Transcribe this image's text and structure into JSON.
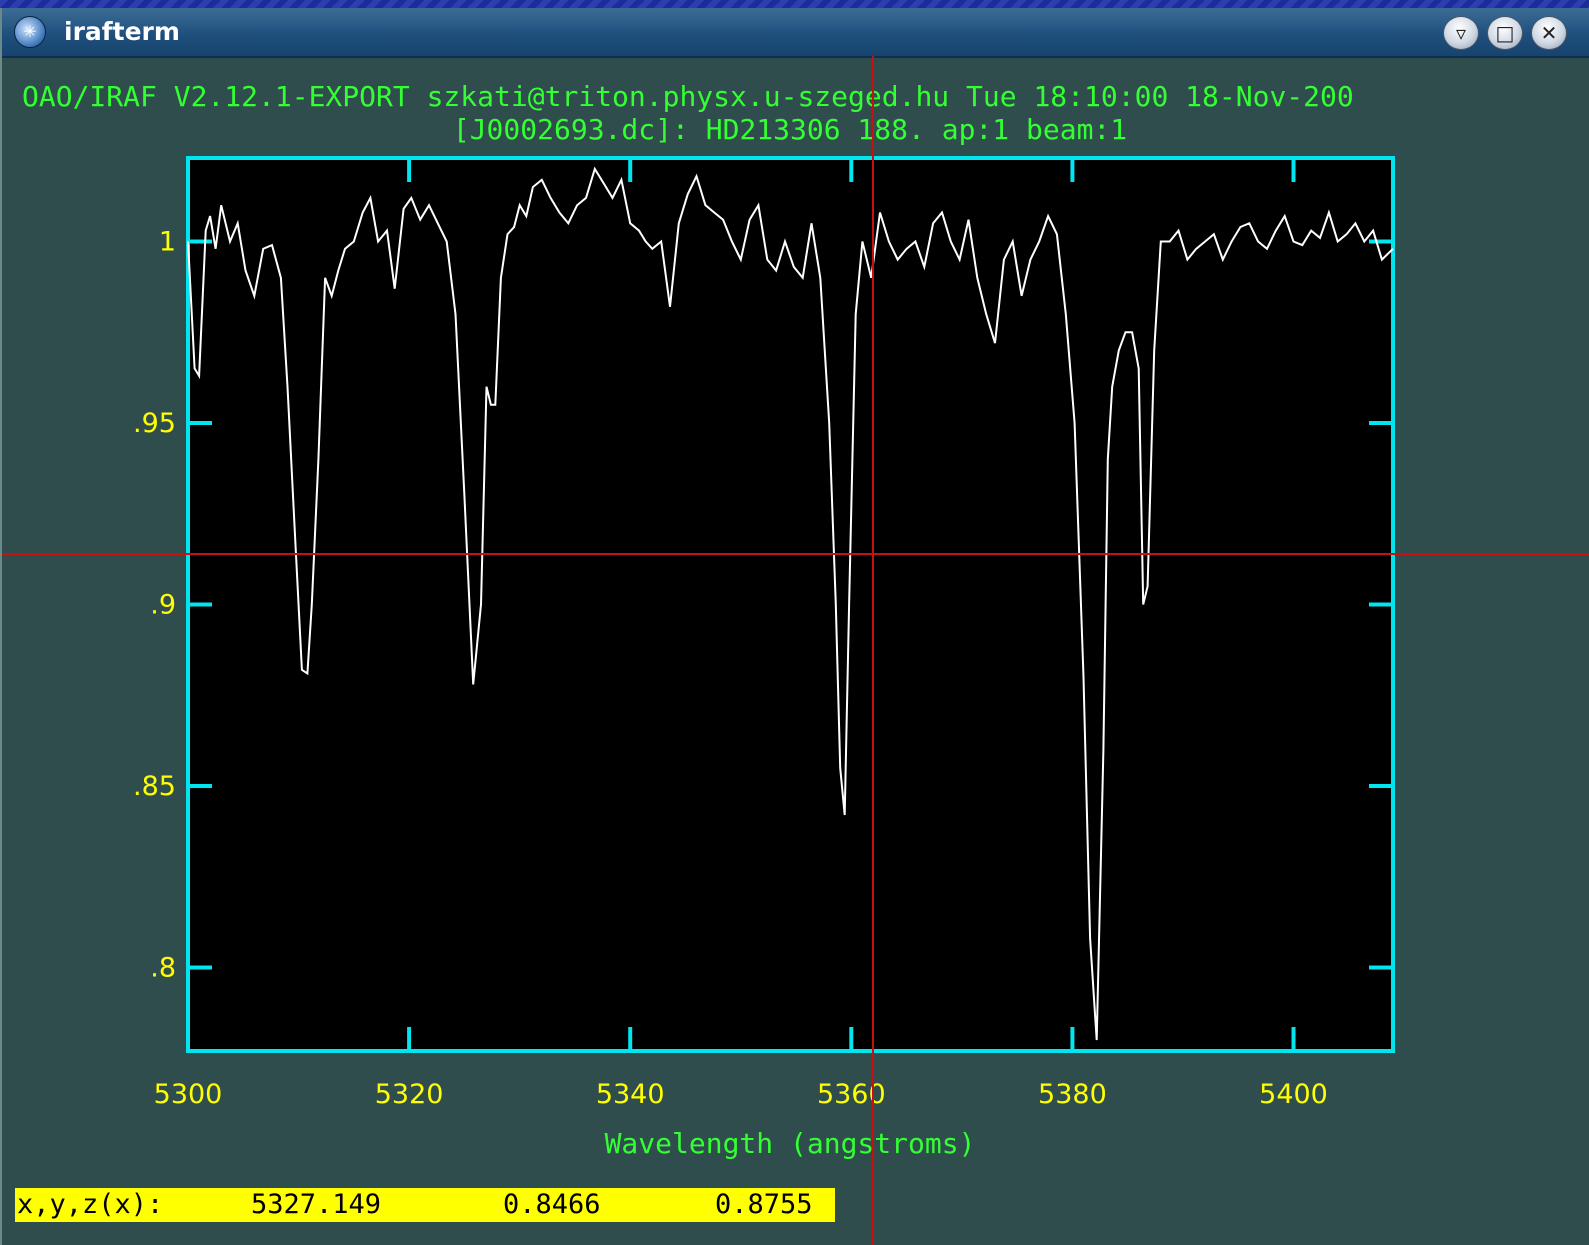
{
  "window": {
    "title": "irafterm",
    "icon": "app-star-icon",
    "controls": [
      "shade-icon",
      "maximize-icon",
      "close-icon"
    ]
  },
  "plot": {
    "header_line1": "OAO/IRAF V2.12.1-EXPORT szkati@triton.physx.u-szeged.hu Tue 18:10:00 18-Nov-200",
    "header_line2": "[J0002693.dc]: HD213306 188. ap:1 beam:1",
    "colors": {
      "frame": "#00e5ee",
      "ytick_labels": "#ffff00",
      "xtick_labels": "#ffff00",
      "header": "#33ff33",
      "xlabel": "#33ff33",
      "spectrum": "#ffffff",
      "crosshair": "#c81010",
      "background": "#000000"
    }
  },
  "status": {
    "label": "x,y,z(x):",
    "x": "5327.149",
    "y": "0.8466",
    "z": "0.8755"
  },
  "chart_data": {
    "type": "line",
    "title": "[J0002693.dc]: HD213306 188. ap:1 beam:1",
    "xlabel": "Wavelength (angstroms)",
    "ylabel": "",
    "xlim": [
      5300,
      5409
    ],
    "ylim": [
      0.777,
      1.023
    ],
    "x_ticks": [
      5300,
      5320,
      5340,
      5360,
      5380,
      5400
    ],
    "x_tick_labels": [
      "5300",
      "5320",
      "5340",
      "5360",
      "5380",
      "5400"
    ],
    "y_ticks": [
      0.8,
      0.85,
      0.9,
      0.95,
      1.0
    ],
    "y_tick_labels": [
      ".8",
      ".85",
      ".9",
      ".95",
      "1"
    ],
    "grid": false,
    "series": [
      {
        "x": [
          5300.0,
          5300.6,
          5301.0,
          5301.6,
          5302.0,
          5302.5,
          5303.0,
          5303.8,
          5304.5,
          5305.2,
          5306.0,
          5306.8,
          5307.6,
          5308.4,
          5309.0,
          5309.7,
          5310.3,
          5310.8,
          5311.2,
          5311.8,
          5312.4,
          5313.0,
          5313.6,
          5314.2,
          5315.0,
          5315.8,
          5316.5,
          5317.2,
          5318.0,
          5318.7,
          5319.5,
          5320.2,
          5321.0,
          5321.8,
          5322.6,
          5323.4,
          5324.2,
          5325.0,
          5325.8,
          5326.5,
          5327.0,
          5327.4,
          5327.8,
          5328.3,
          5328.9,
          5329.5,
          5330.0,
          5330.6,
          5331.2,
          5332.0,
          5332.8,
          5333.6,
          5334.4,
          5335.2,
          5336.0,
          5336.8,
          5337.6,
          5338.4,
          5339.2,
          5340.0,
          5340.8,
          5341.4,
          5342.0,
          5342.8,
          5343.6,
          5344.4,
          5345.2,
          5346.0,
          5346.8,
          5347.6,
          5348.4,
          5349.2,
          5350.0,
          5350.8,
          5351.6,
          5352.4,
          5353.2,
          5354.0,
          5354.8,
          5355.6,
          5356.4,
          5357.2,
          5358.0,
          5358.6,
          5359.0,
          5359.4,
          5359.8,
          5360.4,
          5361.0,
          5361.8,
          5362.6,
          5363.4,
          5364.2,
          5365.0,
          5365.8,
          5366.6,
          5367.4,
          5368.2,
          5369.0,
          5369.8,
          5370.6,
          5371.4,
          5372.2,
          5373.0,
          5373.8,
          5374.6,
          5375.4,
          5376.2,
          5377.0,
          5377.8,
          5378.6,
          5379.4,
          5380.2,
          5381.0,
          5381.6,
          5382.2,
          5382.8,
          5383.2,
          5383.6,
          5384.2,
          5384.8,
          5385.4,
          5386.0,
          5386.4,
          5386.8,
          5387.4,
          5388.0,
          5388.8,
          5389.6,
          5390.4,
          5391.2,
          5392.0,
          5392.8,
          5393.6,
          5394.4,
          5395.2,
          5396.0,
          5396.8,
          5397.6,
          5398.4,
          5399.2,
          5400.0,
          5400.8,
          5401.6,
          5402.4,
          5403.2,
          5404.0,
          5404.8,
          5405.6,
          5406.4,
          5407.2,
          5408.0,
          5409.0
        ],
        "y": [
          1.0,
          0.965,
          0.963,
          1.003,
          1.007,
          0.998,
          1.01,
          1.0,
          1.005,
          0.992,
          0.985,
          0.998,
          0.999,
          0.99,
          0.96,
          0.918,
          0.882,
          0.881,
          0.9,
          0.94,
          0.99,
          0.985,
          0.992,
          0.998,
          1.0,
          1.008,
          1.012,
          1.0,
          1.003,
          0.987,
          1.009,
          1.012,
          1.006,
          1.01,
          1.005,
          1.0,
          0.98,
          0.93,
          0.878,
          0.9,
          0.96,
          0.955,
          0.955,
          0.99,
          1.002,
          1.004,
          1.01,
          1.007,
          1.015,
          1.017,
          1.012,
          1.008,
          1.005,
          1.01,
          1.012,
          1.02,
          1.016,
          1.012,
          1.017,
          1.005,
          1.003,
          1.0,
          0.998,
          1.0,
          0.982,
          1.005,
          1.013,
          1.018,
          1.01,
          1.008,
          1.006,
          1.0,
          0.995,
          1.006,
          1.01,
          0.995,
          0.992,
          1.0,
          0.993,
          0.99,
          1.005,
          0.99,
          0.95,
          0.9,
          0.855,
          0.842,
          0.9,
          0.98,
          1.0,
          0.99,
          1.008,
          1.0,
          0.995,
          0.998,
          1.0,
          0.993,
          1.005,
          1.008,
          1.0,
          0.995,
          1.006,
          0.99,
          0.98,
          0.972,
          0.995,
          1.0,
          0.985,
          0.995,
          1.0,
          1.007,
          1.002,
          0.98,
          0.95,
          0.88,
          0.808,
          0.78,
          0.86,
          0.94,
          0.96,
          0.97,
          0.975,
          0.975,
          0.965,
          0.9,
          0.905,
          0.97,
          1.0,
          1.0,
          1.003,
          0.995,
          0.998,
          1.0,
          1.002,
          0.995,
          1.0,
          1.004,
          1.005,
          1.0,
          0.998,
          1.003,
          1.007,
          1.0,
          0.999,
          1.003,
          1.001,
          1.008,
          1.0,
          1.002,
          1.005,
          1.0,
          1.003,
          0.995,
          0.998
        ]
      }
    ],
    "annotations": [
      "OAO/IRAF V2.12.1-EXPORT szkati@triton.physx.u-szeged.hu Tue 18:10:00 18-Nov-200"
    ]
  }
}
